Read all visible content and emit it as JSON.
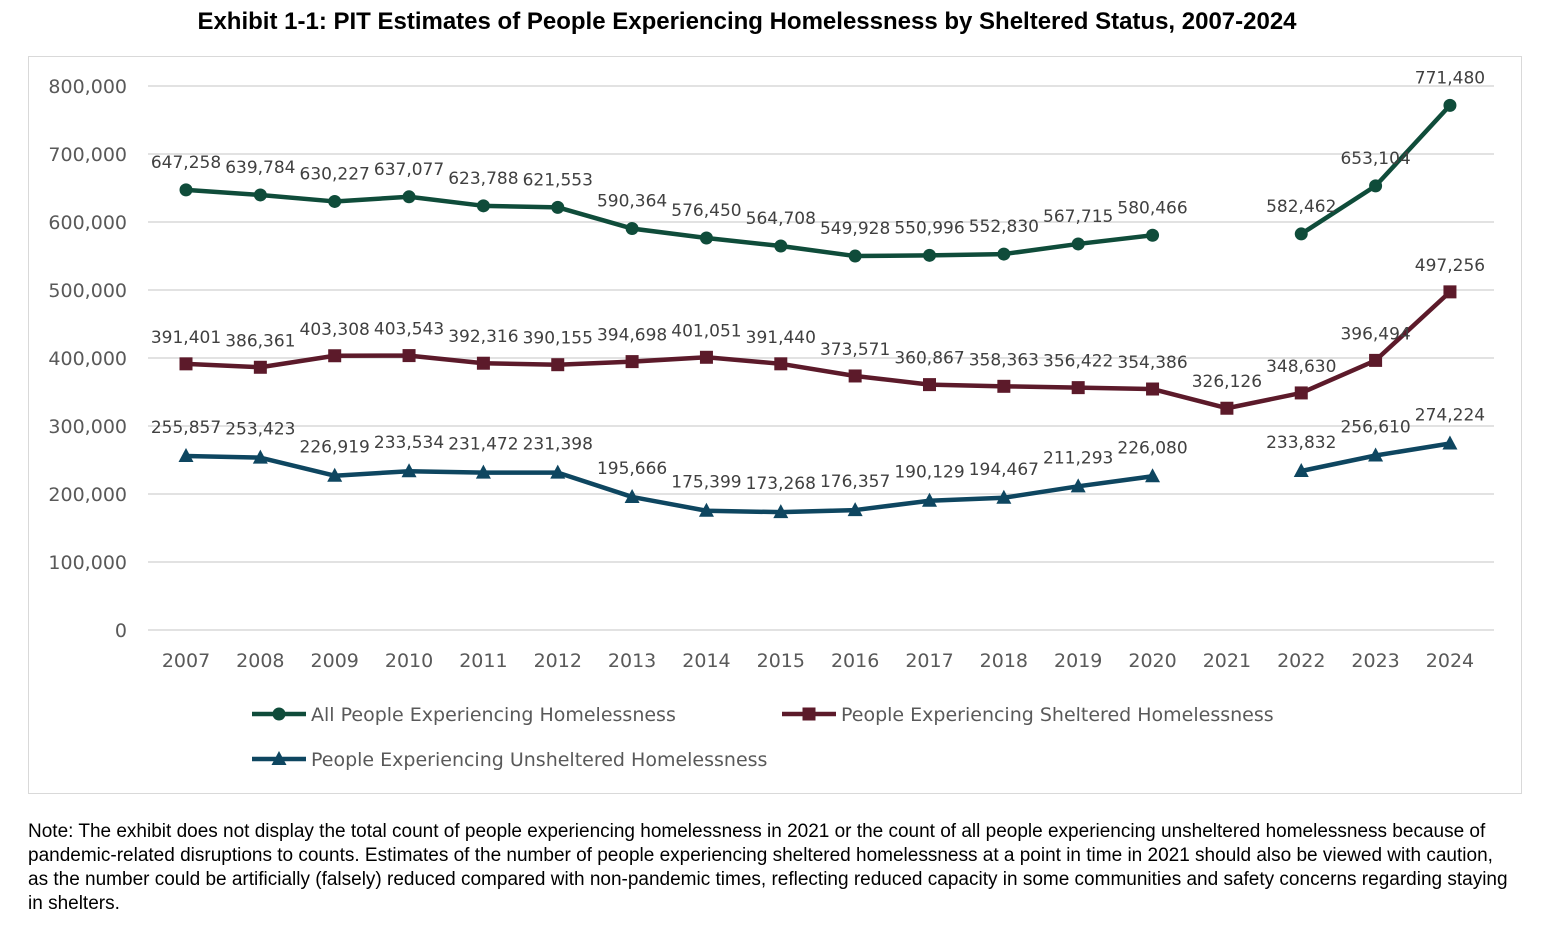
{
  "chart_data": {
    "type": "line",
    "title": "Exhibit 1-1: PIT Estimates of People Experiencing Homelessness by Sheltered Status, 2007-2024",
    "xlabel": "",
    "ylabel": "",
    "ylim": [
      0,
      800000
    ],
    "yticks": [
      0,
      100000,
      200000,
      300000,
      400000,
      500000,
      600000,
      700000,
      800000
    ],
    "ytick_labels": [
      "0",
      "100,000",
      "200,000",
      "300,000",
      "400,000",
      "500,000",
      "600,000",
      "700,000",
      "800,000"
    ],
    "grid": true,
    "legend_position": "bottom",
    "categories": [
      "2007",
      "2008",
      "2009",
      "2010",
      "2011",
      "2012",
      "2013",
      "2014",
      "2015",
      "2016",
      "2017",
      "2018",
      "2019",
      "2020",
      "2021",
      "2022",
      "2023",
      "2024"
    ],
    "series": [
      {
        "name": "All People Experiencing Homelessness",
        "color": "#0f4c3a",
        "marker": "circle",
        "values": [
          647258,
          639784,
          630227,
          637077,
          623788,
          621553,
          590364,
          576450,
          564708,
          549928,
          550996,
          552830,
          567715,
          580466,
          null,
          582462,
          653104,
          771480
        ],
        "labels": [
          "647,258",
          "639,784",
          "630,227",
          "637,077",
          "623,788",
          "621,553",
          "590,364",
          "576,450",
          "564,708",
          "549,928",
          "550,996",
          "552,830",
          "567,715",
          "580,466",
          null,
          "582,462",
          "653,104",
          "771,480"
        ]
      },
      {
        "name": "People Experiencing Sheltered Homelessness",
        "color": "#5c1a2a",
        "marker": "square",
        "values": [
          391401,
          386361,
          403308,
          403543,
          392316,
          390155,
          394698,
          401051,
          391440,
          373571,
          360867,
          358363,
          356422,
          354386,
          326126,
          348630,
          396494,
          497256
        ],
        "labels": [
          "391,401",
          "386,361",
          "403,308",
          "403,543",
          "392,316",
          "390,155",
          "394,698",
          "401,051",
          "391,440",
          "373,571",
          "360,867",
          "358,363",
          "356,422",
          "354,386",
          "326,126",
          "348,630",
          "396,494",
          "497,256"
        ]
      },
      {
        "name": "People Experiencing Unsheltered Homelessness",
        "color": "#0e4660",
        "marker": "triangle",
        "values": [
          255857,
          253423,
          226919,
          233534,
          231472,
          231398,
          195666,
          175399,
          173268,
          176357,
          190129,
          194467,
          211293,
          226080,
          null,
          233832,
          256610,
          274224
        ],
        "labels": [
          "255,857",
          "253,423",
          "226,919",
          "233,534",
          "231,472",
          "231,398",
          "195,666",
          "175,399",
          "173,268",
          "176,357",
          "190,129",
          "194,467",
          "211,293",
          "226,080",
          null,
          "233,832",
          "256,610",
          "274,224"
        ]
      }
    ]
  },
  "note": "Note: The exhibit does not display the total count of people experiencing homelessness in 2021 or the count of all people experiencing unsheltered homelessness because of pandemic-related disruptions to counts. Estimates of the number of people experiencing sheltered homelessness at a point in time in 2021 should also be viewed with caution, as the number could be artificially (falsely) reduced compared with non-pandemic times, reflecting reduced capacity in some communities and safety concerns regarding staying in shelters.",
  "colors": {
    "gridline": "#d9d9d9",
    "tick_text": "#595959",
    "data_label_text": "#404040"
  }
}
